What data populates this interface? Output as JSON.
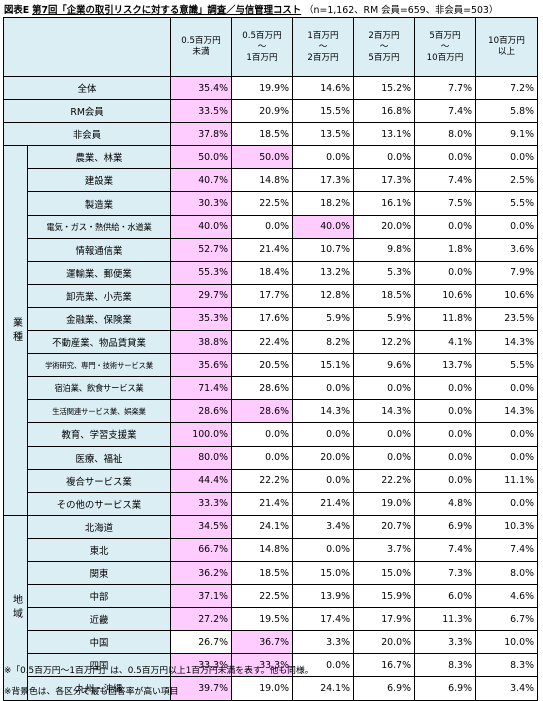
{
  "title": {
    "figure": "図表E",
    "survey": "第7回「企業の取引リスクに対する意識」調査",
    "topic": "／与信管理コスト",
    "sample": "（n=1,162、RM 会員=659、非会員=503）"
  },
  "columns": [
    [
      "0.5百万円",
      "未満"
    ],
    [
      "0.5百万円",
      "～",
      "1百万円"
    ],
    [
      "1百万円",
      "～",
      "2百万円"
    ],
    [
      "2百万円",
      "～",
      "5百万円"
    ],
    [
      "5百万円",
      "～",
      "10百万円"
    ],
    [
      "10百万円",
      "以上"
    ]
  ],
  "groups": {
    "industry": "業種",
    "region": "地域"
  },
  "rows": [
    {
      "label": "全体",
      "values": [
        "35.4%",
        "19.9%",
        "14.6%",
        "15.2%",
        "7.7%",
        "7.2%"
      ],
      "hl": [
        0
      ]
    },
    {
      "label": "RM会員",
      "values": [
        "33.5%",
        "20.9%",
        "15.5%",
        "16.8%",
        "7.4%",
        "5.8%"
      ],
      "hl": [
        0
      ]
    },
    {
      "label": "非会員",
      "values": [
        "37.8%",
        "18.5%",
        "13.5%",
        "13.1%",
        "8.0%",
        "9.1%"
      ],
      "hl": [
        0
      ]
    },
    {
      "label": "農業、林業",
      "values": [
        "50.0%",
        "50.0%",
        "0.0%",
        "0.0%",
        "0.0%",
        "0.0%"
      ],
      "hl": [
        0,
        1
      ]
    },
    {
      "label": "建設業",
      "values": [
        "40.7%",
        "14.8%",
        "17.3%",
        "17.3%",
        "7.4%",
        "2.5%"
      ],
      "hl": [
        0
      ]
    },
    {
      "label": "製造業",
      "values": [
        "30.3%",
        "22.5%",
        "18.2%",
        "16.1%",
        "7.5%",
        "5.5%"
      ],
      "hl": [
        0
      ]
    },
    {
      "label": "電気・ガス・熱供給・水道業",
      "values": [
        "40.0%",
        "0.0%",
        "40.0%",
        "20.0%",
        "0.0%",
        "0.0%"
      ],
      "hl": [
        0,
        2
      ]
    },
    {
      "label": "情報通信業",
      "values": [
        "52.7%",
        "21.4%",
        "10.7%",
        "9.8%",
        "1.8%",
        "3.6%"
      ],
      "hl": [
        0
      ]
    },
    {
      "label": "運輸業、郵便業",
      "values": [
        "55.3%",
        "18.4%",
        "13.2%",
        "5.3%",
        "0.0%",
        "7.9%"
      ],
      "hl": [
        0
      ]
    },
    {
      "label": "卸売業、小売業",
      "values": [
        "29.7%",
        "17.7%",
        "12.8%",
        "18.5%",
        "10.6%",
        "10.6%"
      ],
      "hl": [
        0
      ]
    },
    {
      "label": "金融業、保険業",
      "values": [
        "35.3%",
        "17.6%",
        "5.9%",
        "5.9%",
        "11.8%",
        "23.5%"
      ],
      "hl": [
        0
      ]
    },
    {
      "label": "不動産業、物品賃貸業",
      "values": [
        "38.8%",
        "22.4%",
        "8.2%",
        "12.2%",
        "4.1%",
        "14.3%"
      ],
      "hl": [
        0
      ]
    },
    {
      "label": "学術研究、専門・技術サービス業",
      "values": [
        "35.6%",
        "20.5%",
        "15.1%",
        "9.6%",
        "13.7%",
        "5.5%"
      ],
      "hl": [
        0
      ]
    },
    {
      "label": "宿泊業、飲食サービス業",
      "values": [
        "71.4%",
        "28.6%",
        "0.0%",
        "0.0%",
        "0.0%",
        "0.0%"
      ],
      "hl": [
        0
      ]
    },
    {
      "label": "生活関連サービス業、娯楽業",
      "values": [
        "28.6%",
        "28.6%",
        "14.3%",
        "14.3%",
        "0.0%",
        "14.3%"
      ],
      "hl": [
        0,
        1
      ]
    },
    {
      "label": "教育、学習支援業",
      "values": [
        "100.0%",
        "0.0%",
        "0.0%",
        "0.0%",
        "0.0%",
        "0.0%"
      ],
      "hl": [
        0
      ]
    },
    {
      "label": "医療、福祉",
      "values": [
        "80.0%",
        "0.0%",
        "20.0%",
        "0.0%",
        "0.0%",
        "0.0%"
      ],
      "hl": [
        0
      ]
    },
    {
      "label": "複合サービス業",
      "values": [
        "44.4%",
        "22.2%",
        "0.0%",
        "22.2%",
        "0.0%",
        "11.1%"
      ],
      "hl": [
        0
      ]
    },
    {
      "label": "その他のサービス業",
      "values": [
        "33.3%",
        "21.4%",
        "21.4%",
        "19.0%",
        "4.8%",
        "0.0%"
      ],
      "hl": [
        0
      ]
    },
    {
      "label": "北海道",
      "values": [
        "34.5%",
        "24.1%",
        "3.4%",
        "20.7%",
        "6.9%",
        "10.3%"
      ],
      "hl": [
        0
      ]
    },
    {
      "label": "東北",
      "values": [
        "66.7%",
        "14.8%",
        "0.0%",
        "3.7%",
        "7.4%",
        "7.4%"
      ],
      "hl": [
        0
      ]
    },
    {
      "label": "関東",
      "values": [
        "36.2%",
        "18.5%",
        "15.0%",
        "15.0%",
        "7.3%",
        "8.0%"
      ],
      "hl": [
        0
      ]
    },
    {
      "label": "中部",
      "values": [
        "37.1%",
        "22.5%",
        "13.9%",
        "15.9%",
        "6.0%",
        "4.6%"
      ],
      "hl": [
        0
      ]
    },
    {
      "label": "近畿",
      "values": [
        "27.2%",
        "19.5%",
        "17.4%",
        "17.9%",
        "11.3%",
        "6.7%"
      ],
      "hl": [
        0
      ]
    },
    {
      "label": "中国",
      "values": [
        "26.7%",
        "36.7%",
        "3.3%",
        "20.0%",
        "3.3%",
        "10.0%"
      ],
      "hl": [
        1
      ]
    },
    {
      "label": "四国",
      "values": [
        "33.3%",
        "33.3%",
        "0.0%",
        "16.7%",
        "8.3%",
        "8.3%"
      ],
      "hl": [
        0,
        1
      ]
    },
    {
      "label": "九州・沖縄",
      "values": [
        "39.7%",
        "19.0%",
        "24.1%",
        "6.9%",
        "6.9%",
        "3.4%"
      ],
      "hl": [
        0
      ]
    }
  ],
  "footnotes": [
    "※「0.5百万円～1百万円」は、0.5百万円以上1百万円未満を表す。他も同様。",
    "※背景色は、各区分で最も回答率が高い項目"
  ],
  "colors": {
    "header_bg": "#dbeef4",
    "highlight": "#ffccff"
  }
}
